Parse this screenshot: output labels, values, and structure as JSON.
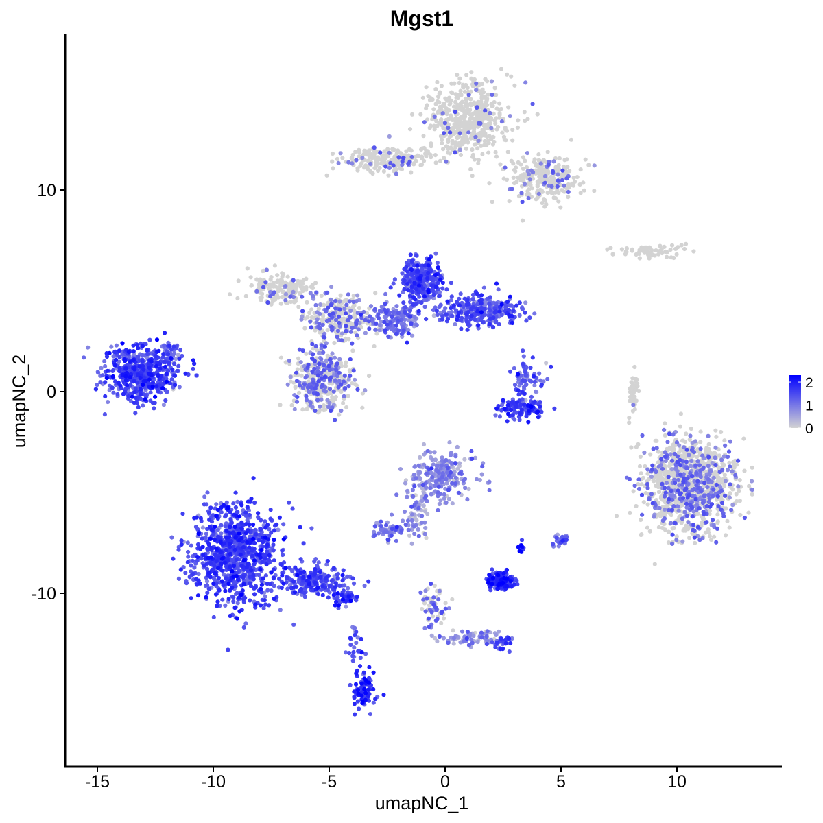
{
  "chart_data": {
    "type": "scatter",
    "title": "Mgst1",
    "xlabel": "umapNC_1",
    "ylabel": "umapNC_2",
    "xlim": [
      -16.5,
      14.5
    ],
    "ylim": [
      -18,
      17.5
    ],
    "x_ticks": [
      -15,
      -10,
      -5,
      0,
      5,
      10
    ],
    "x_tick_labels": [
      "-15",
      "-10",
      "-5",
      "0",
      "5",
      "10"
    ],
    "y_ticks": [
      -10,
      0,
      10
    ],
    "y_tick_labels": [
      "-10",
      "0",
      "10"
    ],
    "grid": false,
    "legend": {
      "placement": "right",
      "type": "colorbar",
      "ticks": [
        0,
        1,
        2
      ],
      "tick_labels": [
        "0",
        "1",
        "2"
      ],
      "range": [
        0,
        2.3
      ]
    },
    "color_low": "#D3D3D3",
    "color_high": "#0000FF",
    "clusters": [
      {
        "id": "left-cluster",
        "x": -13.2,
        "y": 0.9,
        "sx": 1.0,
        "sy": 0.9,
        "n": 520,
        "expr": 1.45
      },
      {
        "id": "left-cluster-tail",
        "x": -11.8,
        "y": 1.8,
        "sx": 0.3,
        "sy": 0.6,
        "n": 40,
        "expr": 1.3
      },
      {
        "id": "big-lower-left",
        "x": -9.0,
        "y": -8.0,
        "sx": 1.3,
        "sy": 1.6,
        "n": 900,
        "expr": 1.5
      },
      {
        "id": "lower-left-arm",
        "x": -5.6,
        "y": -9.4,
        "sx": 1.0,
        "sy": 0.5,
        "n": 220,
        "expr": 1.4
      },
      {
        "id": "lower-left-arm-end",
        "x": -4.3,
        "y": -10.3,
        "sx": 0.3,
        "sy": 0.3,
        "n": 40,
        "expr": 1.6
      },
      {
        "id": "lower-left-stem",
        "x": -3.9,
        "y": -12.8,
        "sx": 0.25,
        "sy": 0.9,
        "n": 25,
        "expr": 1.2
      },
      {
        "id": "lower-left-tip",
        "x": -3.5,
        "y": -14.8,
        "sx": 0.3,
        "sy": 0.6,
        "n": 90,
        "expr": 1.7
      },
      {
        "id": "center-mid-left-blob",
        "x": -5.3,
        "y": 0.6,
        "sx": 0.9,
        "sy": 1.0,
        "n": 380,
        "expr": 0.35
      },
      {
        "id": "center-upper-left-gray",
        "x": -7.2,
        "y": 5.2,
        "sx": 1.0,
        "sy": 0.6,
        "n": 160,
        "expr": 0.1
      },
      {
        "id": "center-upper-spine",
        "x": -4.6,
        "y": 3.6,
        "sx": 1.0,
        "sy": 0.8,
        "n": 260,
        "expr": 0.25
      },
      {
        "id": "center-upper-purple-head",
        "x": -1.0,
        "y": 5.5,
        "sx": 0.6,
        "sy": 0.7,
        "n": 300,
        "expr": 1.4
      },
      {
        "id": "center-upper-purple-arm",
        "x": 1.5,
        "y": 4.0,
        "sx": 1.2,
        "sy": 0.5,
        "n": 300,
        "expr": 1.3
      },
      {
        "id": "center-purple-bridge",
        "x": -2.2,
        "y": 3.5,
        "sx": 0.8,
        "sy": 0.6,
        "n": 160,
        "expr": 1.0
      },
      {
        "id": "center-right-small",
        "x": 3.6,
        "y": 0.6,
        "sx": 0.5,
        "sy": 0.7,
        "n": 70,
        "expr": 1.2
      },
      {
        "id": "center-right-arc",
        "x": 3.3,
        "y": -0.8,
        "sx": 0.7,
        "sy": 0.35,
        "n": 120,
        "expr": 1.6
      },
      {
        "id": "top-gray-main",
        "x": 1.0,
        "y": 13.5,
        "sx": 1.2,
        "sy": 1.3,
        "n": 520,
        "expr": 0.05
      },
      {
        "id": "top-gray-arm-left",
        "x": -2.5,
        "y": 11.5,
        "sx": 1.3,
        "sy": 0.4,
        "n": 200,
        "expr": 0.08
      },
      {
        "id": "top-gray-arm-right",
        "x": 4.2,
        "y": 10.5,
        "sx": 1.0,
        "sy": 0.8,
        "n": 260,
        "expr": 0.08
      },
      {
        "id": "right-thin-top",
        "x": 8.8,
        "y": 6.9,
        "sx": 1.0,
        "sy": 0.2,
        "n": 60,
        "expr": 0.02
      },
      {
        "id": "right-big-gray",
        "x": 10.6,
        "y": -4.6,
        "sx": 1.3,
        "sy": 1.5,
        "n": 1100,
        "expr": 0.2
      },
      {
        "id": "right-thin-vertical",
        "x": 8.1,
        "y": -0.2,
        "sx": 0.15,
        "sy": 0.7,
        "n": 40,
        "expr": 0.02
      },
      {
        "id": "center-lower-gray",
        "x": -0.2,
        "y": -4.2,
        "sx": 0.9,
        "sy": 0.8,
        "n": 240,
        "expr": 0.7
      },
      {
        "id": "center-lower-arm",
        "x": -1.2,
        "y": -6.1,
        "sx": 0.4,
        "sy": 0.8,
        "n": 60,
        "expr": 0.6
      },
      {
        "id": "center-lower-blob-small",
        "x": -2.4,
        "y": -6.9,
        "sx": 0.4,
        "sy": 0.3,
        "n": 60,
        "expr": 0.9
      },
      {
        "id": "purple-small-cluster",
        "x": 2.4,
        "y": -9.4,
        "sx": 0.45,
        "sy": 0.3,
        "n": 130,
        "expr": 1.7
      },
      {
        "id": "tiny-blue-dots",
        "x": 3.3,
        "y": -7.8,
        "sx": 0.1,
        "sy": 0.2,
        "n": 10,
        "expr": 2.2
      },
      {
        "id": "tiny-right-cluster",
        "x": 5.0,
        "y": -7.4,
        "sx": 0.2,
        "sy": 0.2,
        "n": 25,
        "expr": 1.3
      },
      {
        "id": "lower-center-stem",
        "x": -0.5,
        "y": -10.8,
        "sx": 0.4,
        "sy": 0.8,
        "n": 60,
        "expr": 0.4
      },
      {
        "id": "lower-center-branch",
        "x": 1.3,
        "y": -12.2,
        "sx": 1.0,
        "sy": 0.25,
        "n": 70,
        "expr": 0.7
      },
      {
        "id": "lower-center-end",
        "x": 2.4,
        "y": -12.5,
        "sx": 0.3,
        "sy": 0.25,
        "n": 30,
        "expr": 1.3
      }
    ]
  }
}
